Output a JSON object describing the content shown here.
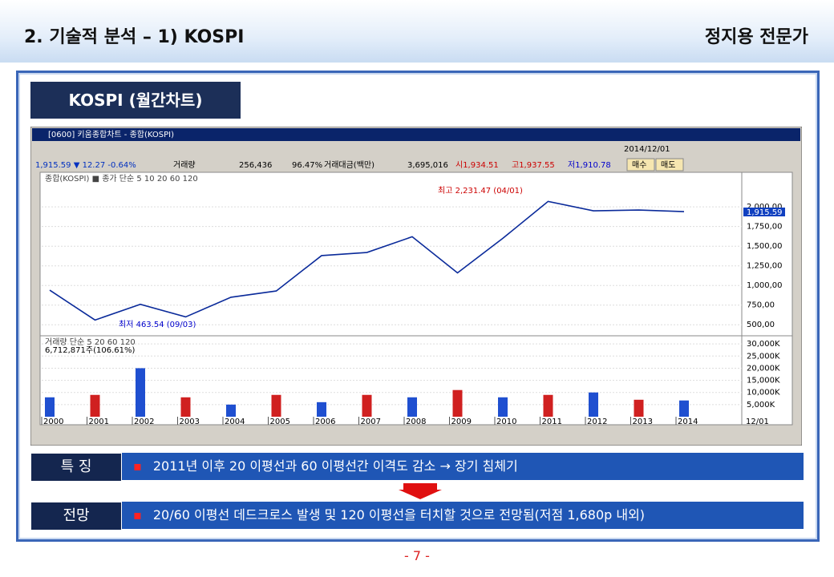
{
  "header": {
    "title": "2. 기술적 분석 – 1) KOSPI",
    "author": "정지용 전문가"
  },
  "tab": "KOSPI (월간차트)",
  "window": {
    "title": "[0600] 키움종합차트 - 종합(KOSPI)",
    "quote": "1,915.59 ▼ 12.27 -0.64%",
    "volume_label": "거래량",
    "volume": "256,436",
    "ratio": "96.47%",
    "amount_label": "거래대금(백만)",
    "amount": "3,695,016",
    "open": "시1,934.51",
    "high": "고1,937.55",
    "low": "저1,910.78",
    "buy": "매수",
    "sell": "매도",
    "date": "2014/12/01",
    "end_label": "12/01"
  },
  "chart_data": [
    {
      "type": "line",
      "legend": "종합(KOSPI) ■ 종가 단순 5 10 20 60 120",
      "categories": [
        "2000",
        "2001",
        "2002",
        "2003",
        "2004",
        "2005",
        "2006",
        "2007",
        "2008",
        "2009",
        "2010",
        "2011",
        "2012",
        "2013",
        "2014"
      ],
      "series": [
        {
          "name": "종합(KOSPI)",
          "color": "#0a2a9a",
          "values": [
            940,
            560,
            760,
            600,
            850,
            930,
            1380,
            1420,
            1620,
            1160,
            1600,
            2070,
            1950,
            1960,
            1940
          ]
        }
      ],
      "ylim": [
        380,
        2420
      ],
      "yticks": [
        {
          "value": 500,
          "label": "500,00"
        },
        {
          "value": 750,
          "label": "750,00"
        },
        {
          "value": 1000,
          "label": "1,000,00"
        },
        {
          "value": 1250,
          "label": "1,250,00"
        },
        {
          "value": 1500,
          "label": "1,500,00"
        },
        {
          "value": 1750,
          "label": "1,750,00"
        },
        {
          "value": 2000,
          "label": "2,000,00"
        }
      ],
      "annotations": [
        "최고 2,231.47 (04/01)",
        "최저 463.54 (09/03)"
      ],
      "last_label": "1,915.59"
    },
    {
      "type": "bar",
      "legend": "거래량 단순 5 20 60 120",
      "subtitle": "6,712,871주(106.61%)",
      "categories": [
        "2000",
        "2001",
        "2002",
        "2003",
        "2004",
        "2005",
        "2006",
        "2007",
        "2008",
        "2009",
        "2010",
        "2011",
        "2012",
        "2013",
        "2014"
      ],
      "series": [
        {
          "name": "거래량",
          "color": "#1f4fd0",
          "values": [
            8000,
            9000,
            20000,
            8000,
            5000,
            9000,
            6000,
            9000,
            8000,
            11000,
            8000,
            9000,
            10000,
            7000,
            6700
          ]
        }
      ],
      "ylim": [
        0,
        32700
      ],
      "yticks": [
        {
          "value": 5000,
          "label": "5,000K"
        },
        {
          "value": 10000,
          "label": "10,000K"
        },
        {
          "value": 15000,
          "label": "15,000K"
        },
        {
          "value": 20000,
          "label": "20,000K"
        },
        {
          "value": 25000,
          "label": "25,000K"
        },
        {
          "value": 30000,
          "label": "30,000K"
        }
      ]
    }
  ],
  "rows": [
    {
      "label": "특 징",
      "text": "2011년 이후 20 이평선과 60 이평선간 이격도 감소 → 장기 침체기"
    },
    {
      "label": "전망",
      "text": "20/60 이평선 데드크로스 발생 및 120 이평선을 터치할 것으로 전망됨(저점 1,680p 내외)"
    }
  ],
  "page": "- 7 -"
}
